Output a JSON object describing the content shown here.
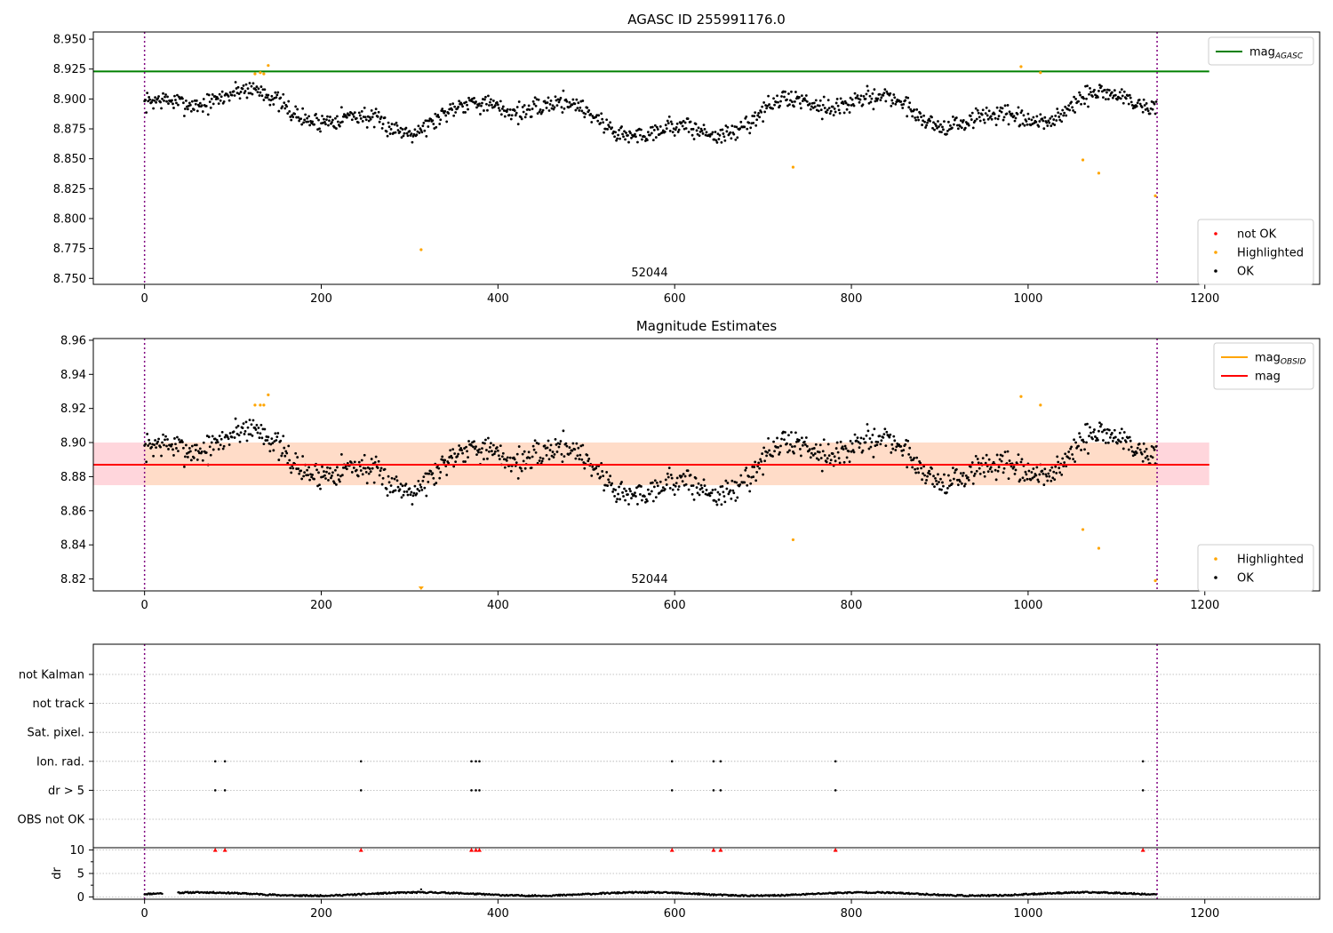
{
  "figure": {
    "width": 1500,
    "height": 1050
  },
  "colors": {
    "ok": "#000000",
    "highlighted": "#ffa500",
    "not_ok": "#ff0000",
    "mag_agasc": "#008000",
    "mag_obsid": "#ffa500",
    "mag": "#ff0000",
    "obsid_line": "#800080",
    "band_outer": "#ffd6dc",
    "band_inner": "#ffdcc8",
    "grid": "#b0b0b0"
  },
  "chart_data": [
    {
      "id": "agasc",
      "type": "scatter",
      "title": "AGASC ID 255991176.0",
      "xlim": [
        -58,
        1330
      ],
      "ylim": [
        8.745,
        8.956
      ],
      "x_ticks": [
        0,
        200,
        400,
        600,
        800,
        1000,
        1200
      ],
      "y_ticks": [
        8.75,
        8.775,
        8.8,
        8.825,
        8.85,
        8.875,
        8.9,
        8.925,
        8.95
      ],
      "y_decimals": 3,
      "obsid_lines": [
        0,
        1146
      ],
      "obsid_label": "52044",
      "obsid_label_x": 572,
      "legend_upper": [
        {
          "label": "mag",
          "sub": "AGASC",
          "color": "#008000"
        }
      ],
      "legend_lower": [
        {
          "label": "not OK",
          "color": "#ff0000"
        },
        {
          "label": "Highlighted",
          "color": "#ffa500"
        },
        {
          "label": "OK",
          "color": "#000000"
        }
      ],
      "mag_agasc": 8.923,
      "series": {
        "n": 1146,
        "mean": 8.887,
        "seed": 7
      },
      "highlighted_points": [
        [
          125,
          8.921
        ],
        [
          131,
          8.922
        ],
        [
          135,
          8.921
        ],
        [
          140,
          8.928
        ],
        [
          313,
          8.774
        ],
        [
          734,
          8.843
        ],
        [
          992,
          8.927
        ],
        [
          1014,
          8.922
        ],
        [
          1062,
          8.849
        ],
        [
          1080,
          8.838
        ],
        [
          1144,
          8.819
        ]
      ]
    },
    {
      "id": "mag",
      "type": "scatter",
      "title": "Magnitude Estimates",
      "xlim": [
        -58,
        1330
      ],
      "ylim": [
        8.813,
        8.961
      ],
      "x_ticks": [
        0,
        200,
        400,
        600,
        800,
        1000,
        1200
      ],
      "y_ticks": [
        8.82,
        8.84,
        8.86,
        8.88,
        8.9,
        8.92,
        8.94,
        8.96
      ],
      "y_decimals": 2,
      "obsid_lines": [
        0,
        1146
      ],
      "obsid_label": "52044",
      "obsid_label_x": 572,
      "legend_upper": [
        {
          "label": "mag",
          "sub": "OBSID",
          "color": "#ffa500"
        },
        {
          "label": "mag",
          "sub": "",
          "color": "#ff0000"
        }
      ],
      "legend_lower": [
        {
          "label": "Highlighted",
          "color": "#ffa500"
        },
        {
          "label": "OK",
          "color": "#000000"
        }
      ],
      "mag_mean": 8.887,
      "band_range": [
        8.875,
        8.9
      ],
      "series": {
        "n": 1146,
        "mean": 8.887,
        "seed": 7
      },
      "highlighted_points": [
        [
          125,
          8.922
        ],
        [
          131,
          8.922
        ],
        [
          135,
          8.922
        ],
        [
          140,
          8.928
        ],
        [
          992,
          8.927
        ],
        [
          1014,
          8.922
        ],
        [
          734,
          8.843
        ],
        [
          1062,
          8.849
        ],
        [
          1080,
          8.838
        ],
        [
          1144,
          8.819
        ]
      ],
      "below_axis_marker": [
        313,
        8.813
      ]
    },
    {
      "id": "flags",
      "type": "scatter",
      "xlim": [
        -58,
        1330
      ],
      "x_ticks": [
        0,
        200,
        400,
        600,
        800,
        1000,
        1200
      ],
      "obsid_lines": [
        0,
        1146
      ],
      "flag_rows": [
        "not Kalman",
        "not track",
        "Sat. pixel.",
        "Ion. rad.",
        "dr > 5",
        "OBS not OK"
      ],
      "flag_points": {
        "Ion. rad.": [
          80,
          91,
          245,
          370,
          375,
          379,
          597,
          644,
          652,
          782,
          1130
        ],
        "dr > 5": [
          80,
          91,
          245,
          370,
          375,
          379,
          597,
          644,
          652,
          782,
          1130
        ]
      },
      "dr_ylabel": "dr",
      "dr_ylim": [
        -0.5,
        10.5
      ],
      "dr_ticks": [
        0,
        5,
        10
      ],
      "dr_clipped_points": [
        80,
        91,
        245,
        370,
        375,
        379,
        597,
        644,
        652,
        782,
        1130
      ],
      "dr_series": {
        "n": 1146,
        "mean": 0.6,
        "gap": [
          20,
          38
        ]
      }
    }
  ]
}
